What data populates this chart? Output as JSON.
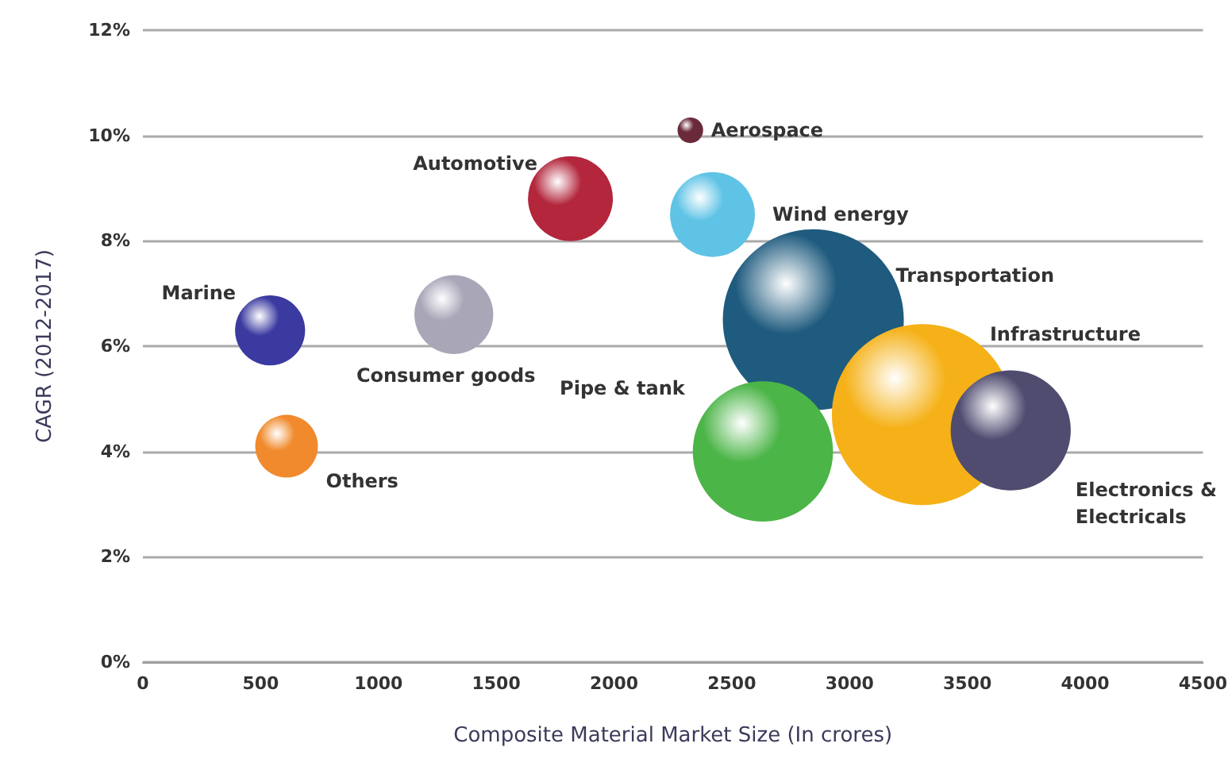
{
  "chart_data": {
    "type": "bubble",
    "xlabel": "Composite Material Market Size (In crores)",
    "ylabel": "CAGR (2012-2017)",
    "xlim": [
      0,
      4500
    ],
    "xticks": [
      0,
      500,
      1000,
      1500,
      2000,
      2500,
      3000,
      3500,
      4000,
      4500
    ],
    "ylim": [
      0,
      12
    ],
    "yticks": [
      {
        "value": 0,
        "label": "0%"
      },
      {
        "value": 2,
        "label": "2%"
      },
      {
        "value": 4,
        "label": "4%"
      },
      {
        "value": 6,
        "label": "6%"
      },
      {
        "value": 8,
        "label": "8%"
      },
      {
        "value": 10,
        "label": "10%"
      },
      {
        "value": 12,
        "label": "12%"
      }
    ],
    "grid": "y",
    "legend": false,
    "series": [
      {
        "name": "Marine",
        "color": "#3b3aa0",
        "x": [
          540
        ],
        "values": [
          6.3
        ],
        "sizes": [
          0.15
        ]
      },
      {
        "name": "Others",
        "color": "#f08a2c",
        "x": [
          610
        ],
        "values": [
          4.1
        ],
        "sizes": [
          0.12
        ]
      },
      {
        "name": "Consumer goods",
        "color": "#a9a6b8",
        "x": [
          1320
        ],
        "values": [
          6.6
        ],
        "sizes": [
          0.19
        ]
      },
      {
        "name": "Automotive",
        "color": "#b3263c",
        "x": [
          1815
        ],
        "values": [
          8.8
        ],
        "sizes": [
          0.22
        ]
      },
      {
        "name": "Aerospace",
        "color": "#6b2a3a",
        "x": [
          2324
        ],
        "values": [
          10.1
        ],
        "sizes": [
          0.02
        ]
      },
      {
        "name": "Wind energy",
        "color": "#5fc3e6",
        "x": [
          2418
        ],
        "values": [
          8.5
        ],
        "sizes": [
          0.22
        ]
      },
      {
        "name": "Transportation",
        "color": "#1f5b7e",
        "x": [
          2846
        ],
        "values": [
          6.5
        ],
        "sizes": [
          1
        ]
      },
      {
        "name": "Pipe & tank",
        "color": "#4cb548",
        "x": [
          2632
        ],
        "values": [
          4.0
        ],
        "sizes": [
          0.6
        ]
      },
      {
        "name": "Infrastructure",
        "color": "#f5b117",
        "x": [
          3309
        ],
        "values": [
          4.7
        ],
        "sizes": [
          1
        ]
      },
      {
        "name": "Electronics & Electricals",
        "color": "#4f4c70",
        "x": [
          3684
        ],
        "values": [
          4.4
        ],
        "sizes": [
          0.44
        ]
      }
    ]
  }
}
